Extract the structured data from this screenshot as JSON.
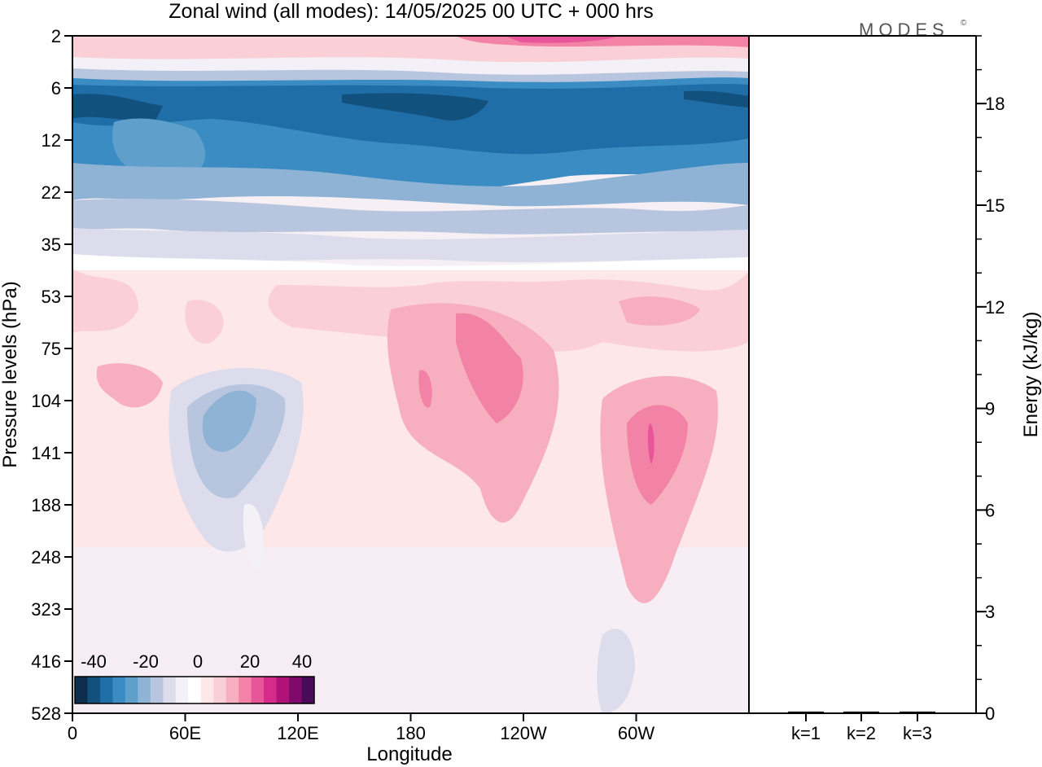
{
  "chart_data": {
    "type": "heatmap",
    "title": "Zonal wind (all modes):  14/05/2025  00 UTC  + 000 hrs",
    "logo": "MODES",
    "logo_mark": "©",
    "xlabel": "Longitude",
    "ylabel": "Pressure levels (hPa)",
    "y2label": "Energy (kJ/kg)",
    "x_ticks": [
      "0",
      "60E",
      "120E",
      "180",
      "120W",
      "60W"
    ],
    "y_ticks": [
      "2",
      "6",
      "12",
      "22",
      "35",
      "53",
      "75",
      "104",
      "141",
      "188",
      "248",
      "323",
      "416",
      "528"
    ],
    "y2_ticks": [
      "0",
      "3",
      "6",
      "9",
      "12",
      "15",
      "18"
    ],
    "y2lim": [
      0,
      20
    ],
    "energy_categories": [
      "k=1",
      "k=2",
      "k=3"
    ],
    "energy_values": [
      0.05,
      0.05,
      0.05
    ],
    "colorbar": {
      "labels": [
        "-40",
        "-20",
        "0",
        "20",
        "40"
      ],
      "colors": [
        "#0d2d4d",
        "#12507e",
        "#1f6ea8",
        "#3a8cc2",
        "#5e9fcb",
        "#8fb3d5",
        "#b7c5de",
        "#dcdcec",
        "#f3f0f8",
        "#ffffff",
        "#fde7e9",
        "#fbcfd6",
        "#f7aebe",
        "#f283a6",
        "#e9559a",
        "#d52b8a",
        "#b0127a",
        "#7f0a6c",
        "#4a0a5a"
      ]
    },
    "wind_field_note_colors": {
      "neg_strong": "#1f6ea8",
      "neg_mid": "#3a8cc2",
      "neg_weak": "#8fb3d5",
      "neutral": "#f3f0f8",
      "pos_weak": "#fde7e9",
      "pos_mid": "#f7aebe",
      "pos_strong": "#e9559a"
    }
  }
}
